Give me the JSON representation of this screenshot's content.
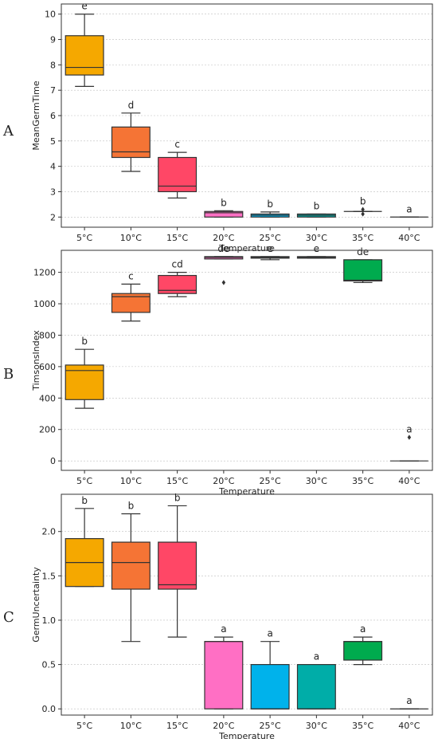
{
  "colors": {
    "5°C": "#F5A800",
    "10°C": "#F57435",
    "15°C": "#FF4766",
    "20°C": "#FF6FC4",
    "25°C": "#00B2EB",
    "30°C": "#00ADA8",
    "35°C": "#00AB4E",
    "40°C": "#9A9A9A"
  },
  "chart_data": [
    {
      "type": "box",
      "panel": "A",
      "xlabel": "Temperature",
      "ylabel": "MeanGermTime",
      "ylim": [
        1.6,
        10.4
      ],
      "yticks": [
        2,
        3,
        4,
        5,
        6,
        7,
        8,
        9,
        10
      ],
      "categories": [
        "5°C",
        "10°C",
        "15°C",
        "20°C",
        "25°C",
        "30°C",
        "35°C",
        "40°C"
      ],
      "boxes": [
        {
          "whislo": 7.15,
          "q1": 7.6,
          "med": 7.9,
          "q3": 9.15,
          "whishi": 10.0,
          "fliers": [],
          "sig": "e"
        },
        {
          "whislo": 3.8,
          "q1": 4.35,
          "med": 4.57,
          "q3": 5.55,
          "whishi": 6.1,
          "fliers": [],
          "sig": "d"
        },
        {
          "whislo": 2.75,
          "q1": 3.0,
          "med": 3.22,
          "q3": 4.35,
          "whishi": 4.55,
          "fliers": [],
          "sig": "c"
        },
        {
          "whislo": 2.0,
          "q1": 2.0,
          "med": 2.17,
          "q3": 2.22,
          "whishi": 2.25,
          "fliers": [],
          "sig": "b"
        },
        {
          "whislo": 2.0,
          "q1": 2.0,
          "med": 2.07,
          "q3": 2.12,
          "whishi": 2.2,
          "fliers": [],
          "sig": "b"
        },
        {
          "whislo": 2.0,
          "q1": 2.0,
          "med": 2.07,
          "q3": 2.12,
          "whishi": 2.12,
          "fliers": [],
          "sig": "b"
        },
        {
          "whislo": 2.22,
          "q1": 2.22,
          "med": 2.22,
          "q3": 2.22,
          "whishi": 2.22,
          "fliers": [
            2.12,
            2.3
          ],
          "sig": "b"
        },
        {
          "whislo": 2.0,
          "q1": 2.0,
          "med": 2.0,
          "q3": 2.0,
          "whishi": 2.0,
          "fliers": [],
          "sig": "a"
        }
      ]
    },
    {
      "type": "box",
      "panel": "B",
      "xlabel": "Temperature",
      "ylabel": "TimsonsIndex",
      "ylim": [
        -60,
        1340
      ],
      "yticks": [
        0,
        200,
        400,
        600,
        800,
        1000,
        1200
      ],
      "categories": [
        "5°C",
        "10°C",
        "15°C",
        "20°C",
        "25°C",
        "30°C",
        "35°C",
        "40°C"
      ],
      "boxes": [
        {
          "whislo": 335,
          "q1": 390,
          "med": 575,
          "q3": 610,
          "whishi": 710,
          "fliers": [],
          "sig": "b"
        },
        {
          "whislo": 890,
          "q1": 945,
          "med": 1045,
          "q3": 1065,
          "whishi": 1125,
          "fliers": [],
          "sig": "c"
        },
        {
          "whislo": 1045,
          "q1": 1065,
          "med": 1085,
          "q3": 1180,
          "whishi": 1200,
          "fliers": [],
          "sig": "cd"
        },
        {
          "whislo": 1285,
          "q1": 1285,
          "med": 1295,
          "q3": 1300,
          "whishi": 1300,
          "fliers": [
            1135
          ],
          "sig": "de"
        },
        {
          "whislo": 1280,
          "q1": 1290,
          "med": 1295,
          "q3": 1300,
          "whishi": 1300,
          "fliers": [],
          "sig": "e"
        },
        {
          "whislo": 1290,
          "q1": 1290,
          "med": 1295,
          "q3": 1300,
          "whishi": 1300,
          "fliers": [],
          "sig": "e"
        },
        {
          "whislo": 1135,
          "q1": 1145,
          "med": 1150,
          "q3": 1280,
          "whishi": 1280,
          "fliers": [],
          "sig": "de"
        },
        {
          "whislo": 0,
          "q1": 0,
          "med": 0,
          "q3": 0,
          "whishi": 0,
          "fliers": [
            150
          ],
          "sig": "a"
        }
      ]
    },
    {
      "type": "box",
      "panel": "C",
      "xlabel": "Temperature",
      "ylabel": "GermUncertainty",
      "ylim": [
        -0.07,
        2.42
      ],
      "yticks": [
        0.0,
        0.5,
        1.0,
        1.5,
        2.0
      ],
      "categories": [
        "5°C",
        "10°C",
        "15°C",
        "20°C",
        "25°C",
        "30°C",
        "35°C",
        "40°C"
      ],
      "boxes": [
        {
          "whislo": 1.38,
          "q1": 1.38,
          "med": 1.65,
          "q3": 1.92,
          "whishi": 2.26,
          "fliers": [],
          "sig": "b"
        },
        {
          "whislo": 0.76,
          "q1": 1.35,
          "med": 1.65,
          "q3": 1.88,
          "whishi": 2.2,
          "fliers": [],
          "sig": "b"
        },
        {
          "whislo": 0.81,
          "q1": 1.35,
          "med": 1.4,
          "q3": 1.88,
          "whishi": 2.29,
          "fliers": [],
          "sig": "b"
        },
        {
          "whislo": 0.0,
          "q1": 0.0,
          "med": 0.76,
          "q3": 0.76,
          "whishi": 0.81,
          "fliers": [],
          "sig": "a"
        },
        {
          "whislo": 0.0,
          "q1": 0.0,
          "med": 0.0,
          "q3": 0.5,
          "whishi": 0.76,
          "fliers": [],
          "sig": "a"
        },
        {
          "whislo": 0.0,
          "q1": 0.0,
          "med": 0.0,
          "q3": 0.5,
          "whishi": 0.5,
          "fliers": [],
          "sig": "a"
        },
        {
          "whislo": 0.5,
          "q1": 0.55,
          "med": 0.76,
          "q3": 0.76,
          "whishi": 0.81,
          "fliers": [],
          "sig": "a"
        },
        {
          "whislo": 0.0,
          "q1": 0.0,
          "med": 0.0,
          "q3": 0.0,
          "whishi": 0.0,
          "fliers": [],
          "sig": "a"
        }
      ]
    }
  ]
}
